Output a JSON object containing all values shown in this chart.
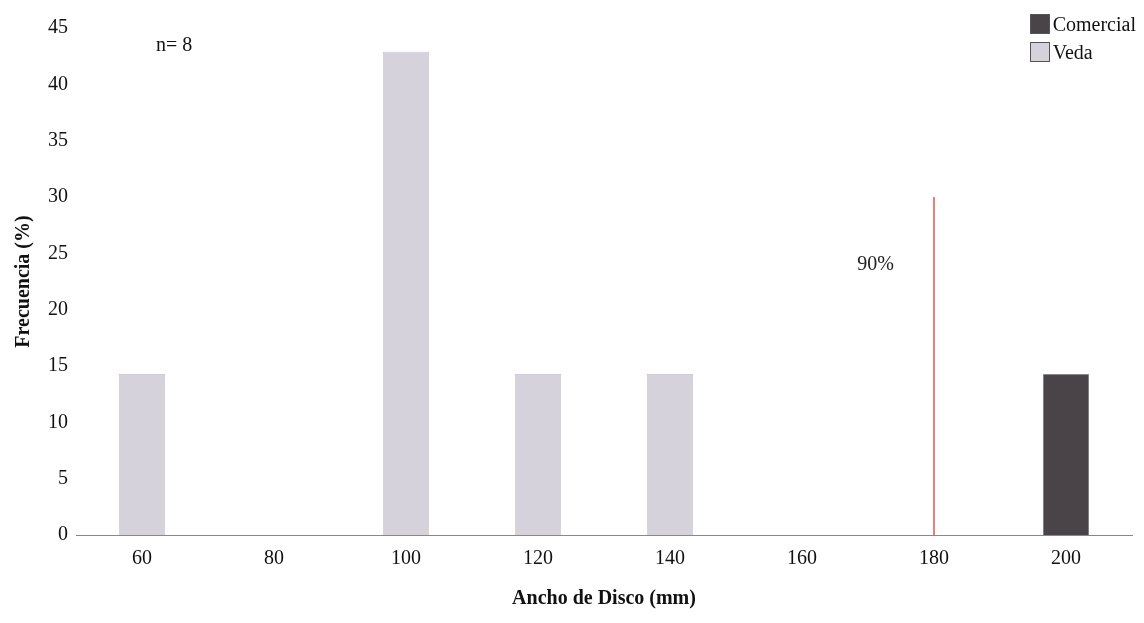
{
  "chart_data": {
    "type": "bar",
    "xlabel": "Ancho de Disco (mm)",
    "ylabel": "Frecuencia (%)",
    "categories": [
      "60",
      "80",
      "100",
      "120",
      "140",
      "160",
      "180",
      "200"
    ],
    "series": [
      {
        "name": "Comercial",
        "color": "#4a4448",
        "values": [
          null,
          null,
          null,
          null,
          null,
          null,
          null,
          14.3
        ]
      },
      {
        "name": "Veda",
        "color": "#d6d2dc",
        "values": [
          14.3,
          null,
          42.9,
          14.3,
          14.3,
          null,
          null,
          null
        ]
      }
    ],
    "stacked": true,
    "ylim": [
      0,
      45
    ],
    "yticks": [
      0,
      5,
      10,
      15,
      20,
      25,
      30,
      35,
      40,
      45
    ],
    "grid": false,
    "legend": "top right",
    "ref_lines": [
      {
        "axis": "x",
        "value": "180",
        "label": "90%",
        "color": "#e02828"
      }
    ],
    "annotations": [
      "n= 8"
    ]
  }
}
